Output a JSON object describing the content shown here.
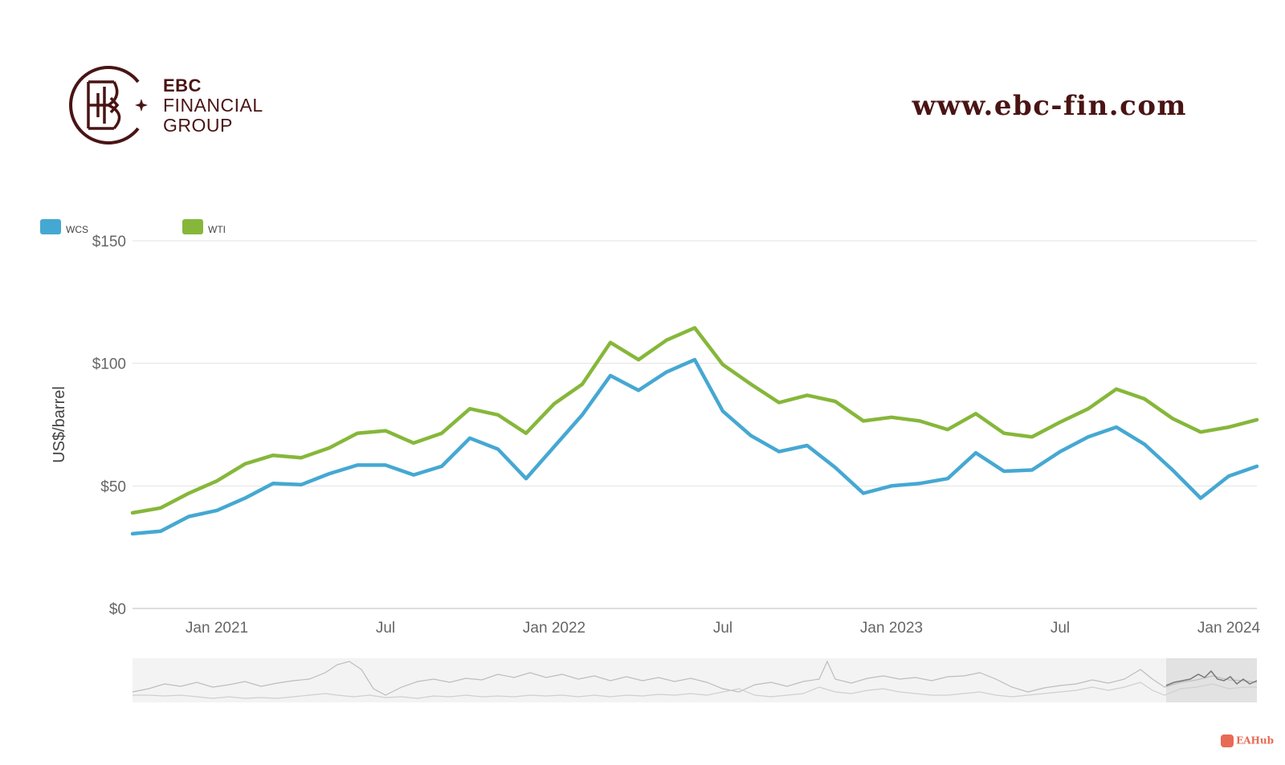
{
  "brand": {
    "line1": "EBC",
    "line2": "FINANCIAL",
    "line3": "GROUP",
    "website": "www.ebc-fin.com",
    "color": "#4a1414"
  },
  "watermark": {
    "text": "EAHub",
    "icon": "eahub-logo-icon",
    "color": "#e86a55"
  },
  "chart_data": {
    "type": "line",
    "title": "",
    "xlabel": "",
    "ylabel": "US$/barrel",
    "x": [
      "2020-10",
      "2020-11",
      "2020-12",
      "2021-01",
      "2021-02",
      "2021-03",
      "2021-04",
      "2021-05",
      "2021-06",
      "2021-07",
      "2021-08",
      "2021-09",
      "2021-10",
      "2021-11",
      "2021-12",
      "2022-01",
      "2022-02",
      "2022-03",
      "2022-04",
      "2022-05",
      "2022-06",
      "2022-07",
      "2022-08",
      "2022-09",
      "2022-10",
      "2022-11",
      "2022-12",
      "2023-01",
      "2023-02",
      "2023-03",
      "2023-04",
      "2023-05",
      "2023-06",
      "2023-07",
      "2023-08",
      "2023-09",
      "2023-10",
      "2023-11",
      "2023-12",
      "2024-01",
      "2024-02"
    ],
    "x_ticks": [
      {
        "date": "2021-01",
        "label": "Jan 2021"
      },
      {
        "date": "2021-07",
        "label": "Jul"
      },
      {
        "date": "2022-01",
        "label": "Jan 2022"
      },
      {
        "date": "2022-07",
        "label": "Jul"
      },
      {
        "date": "2023-01",
        "label": "Jan 2023"
      },
      {
        "date": "2023-07",
        "label": "Jul"
      },
      {
        "date": "2024-01",
        "label": "Jan 2024"
      }
    ],
    "y_ticks": [
      {
        "value": 0,
        "label": "$0"
      },
      {
        "value": 50,
        "label": "$50"
      },
      {
        "value": 100,
        "label": "$100"
      },
      {
        "value": 150,
        "label": "$150"
      }
    ],
    "ylim": [
      0,
      150
    ],
    "grid": "horizontal",
    "legend_position": "top-left",
    "series": [
      {
        "name": "WCS",
        "color": "#45a8d2",
        "values": [
          30.5,
          31.5,
          37.5,
          40,
          45,
          51,
          50.5,
          55,
          58.5,
          58.5,
          54.5,
          58,
          69.5,
          65,
          53,
          66,
          79,
          95,
          89,
          96.5,
          101.5,
          80.5,
          70.5,
          64,
          66.5,
          57.5,
          47,
          50,
          51,
          53,
          63.5,
          56,
          56.5,
          64,
          70,
          74,
          67,
          56.5,
          45,
          54,
          58
        ]
      },
      {
        "name": "WTI",
        "color": "#86b73a",
        "values": [
          39,
          41,
          47,
          52,
          59,
          62.5,
          61.5,
          65.5,
          71.5,
          72.5,
          67.5,
          71.5,
          81.5,
          79,
          71.5,
          83.5,
          91.5,
          108.5,
          101.5,
          109.5,
          114.5,
          99.5,
          91.5,
          84,
          87,
          84.5,
          76.5,
          78,
          76.5,
          73,
          79.5,
          71.5,
          70,
          76,
          81.5,
          89.5,
          85.5,
          77.5,
          72,
          74,
          77
        ]
      }
    ]
  }
}
